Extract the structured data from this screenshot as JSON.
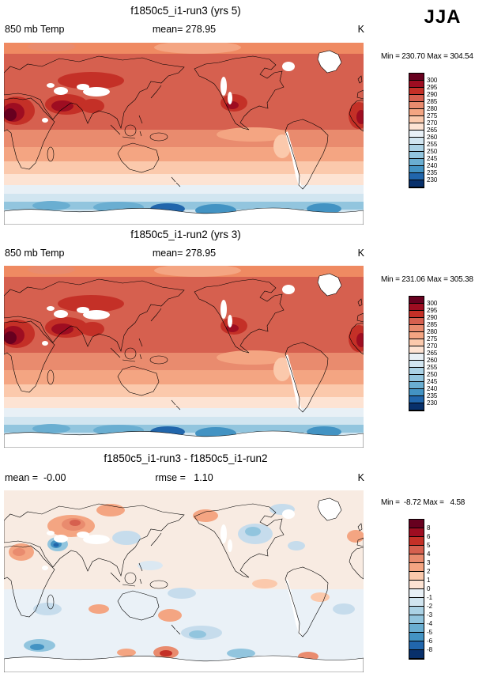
{
  "season_label": "JJA",
  "panels": [
    {
      "id": "run3",
      "title": "f1850c5_i1-run3 (yrs 5)",
      "stats": {
        "left": "850 mb Temp",
        "center": "mean= 278.95",
        "right": "K"
      },
      "minmax": "Min = 230.70 Max = 304.54",
      "colorbar": {
        "labels": [
          "300",
          "295",
          "290",
          "285",
          "280",
          "275",
          "270",
          "265",
          "260",
          "255",
          "250",
          "245",
          "240",
          "235",
          "230"
        ],
        "colors": [
          "#67001f",
          "#9e0d21",
          "#c43027",
          "#d6604f",
          "#e98b6e",
          "#f4a582",
          "#fbc9ac",
          "#fde3d3",
          "#e8f0f6",
          "#d1e5f0",
          "#abd2e5",
          "#92c5de",
          "#6aaed1",
          "#4393c3",
          "#2166ac",
          "#08306b"
        ]
      }
    },
    {
      "id": "run2",
      "title": "f1850c5_i1-run2 (yrs 3)",
      "stats": {
        "left": "850 mb Temp",
        "center": "mean= 278.95",
        "right": "K"
      },
      "minmax": "Min = 231.06 Max = 305.38",
      "colorbar": {
        "labels": [
          "300",
          "295",
          "290",
          "285",
          "280",
          "275",
          "270",
          "265",
          "260",
          "255",
          "250",
          "245",
          "240",
          "235",
          "230"
        ],
        "colors": [
          "#67001f",
          "#9e0d21",
          "#c43027",
          "#d6604f",
          "#e98b6e",
          "#f4a582",
          "#fbc9ac",
          "#fde3d3",
          "#e8f0f6",
          "#d1e5f0",
          "#abd2e5",
          "#92c5de",
          "#6aaed1",
          "#4393c3",
          "#2166ac",
          "#08306b"
        ]
      }
    },
    {
      "id": "diff",
      "title": "f1850c5_i1-run3 - f1850c5_i1-run2",
      "stats": {
        "left": "mean =  -0.00",
        "center": "rmse =   1.10",
        "right": "K"
      },
      "minmax": "Min =  -8.72 Max =   4.58",
      "colorbar": {
        "labels": [
          "8",
          "6",
          "5",
          "4",
          "3",
          "2",
          "1",
          "0",
          "-1",
          "-2",
          "-3",
          "-4",
          "-5",
          "-6",
          "-8"
        ],
        "colors": [
          "#67001f",
          "#9e0d21",
          "#c43027",
          "#d6604f",
          "#e98b6e",
          "#f4a582",
          "#fbc9ac",
          "#fde3d3",
          "#e8f0f6",
          "#d1e5f0",
          "#abd2e5",
          "#92c5de",
          "#6aaed1",
          "#4393c3",
          "#2166ac",
          "#08306b"
        ]
      }
    }
  ],
  "chart_data": [
    {
      "type": "heatmap",
      "panel": "top",
      "title": "f1850c5_i1-run3 (yrs 5)",
      "variable": "850 mb Temp",
      "season": "JJA",
      "units": "K",
      "mean": 278.95,
      "min": 230.7,
      "max": 304.54,
      "contour_levels": [
        230,
        235,
        240,
        245,
        250,
        255,
        260,
        265,
        270,
        275,
        280,
        285,
        290,
        295,
        300
      ],
      "palette": "blue-to-red diverging, 16 bins",
      "projection": "global latitude-longitude map, Pacific-centered, white = masked terrain"
    },
    {
      "type": "heatmap",
      "panel": "middle",
      "title": "f1850c5_i1-run2 (yrs 3)",
      "variable": "850 mb Temp",
      "season": "JJA",
      "units": "K",
      "mean": 278.95,
      "min": 231.06,
      "max": 305.38,
      "contour_levels": [
        230,
        235,
        240,
        245,
        250,
        255,
        260,
        265,
        270,
        275,
        280,
        285,
        290,
        295,
        300
      ],
      "palette": "blue-to-red diverging, 16 bins",
      "projection": "global latitude-longitude map, Pacific-centered, white = masked terrain"
    },
    {
      "type": "heatmap",
      "panel": "bottom",
      "title": "f1850c5_i1-run3 - f1850c5_i1-run2",
      "variable": "850 mb Temp difference (run3 minus run2)",
      "season": "JJA",
      "units": "K",
      "mean": -0.0,
      "rmse": 1.1,
      "min": -8.72,
      "max": 4.58,
      "contour_levels": [
        -8,
        -6,
        -5,
        -4,
        -3,
        -2,
        -1,
        0,
        1,
        2,
        3,
        4,
        5,
        6,
        8
      ],
      "palette": "blue-to-red diverging, 16 bins",
      "projection": "global latitude-longitude map, Pacific-centered, white = masked terrain"
    }
  ]
}
